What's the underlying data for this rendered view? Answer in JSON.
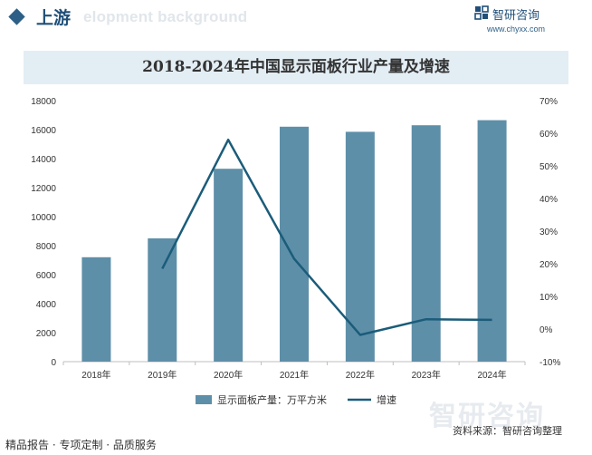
{
  "header": {
    "section_title": "上游",
    "background_watermark": "elopment background",
    "brand_name": "智研咨询",
    "brand_url": "www.chyxx.com"
  },
  "chart_title": "2018-2024年中国显示面板行业产量及增速",
  "chart_data": {
    "type": "bar",
    "title": "2018-2024年中国显示面板行业产量及增速",
    "categories": [
      "2018年",
      "2019年",
      "2020年",
      "2021年",
      "2022年",
      "2023年",
      "2024年"
    ],
    "series": [
      {
        "name": "显示面板产量：万平方米",
        "type": "bar",
        "axis": "left",
        "color": "#5e8fa8",
        "values": [
          7200,
          8500,
          13300,
          16200,
          15850,
          16300,
          16650
        ]
      },
      {
        "name": "增速",
        "type": "line",
        "axis": "right",
        "color": "#1b5c7a",
        "values": [
          null,
          18.5,
          58,
          21.5,
          -1.8,
          3,
          2.8
        ]
      }
    ],
    "y_left": {
      "min": 0,
      "max": 18000,
      "ticks": [
        "0",
        "2000",
        "4000",
        "6000",
        "8000",
        "10000",
        "12000",
        "14000",
        "16000",
        "18000"
      ]
    },
    "y_right": {
      "min": -10,
      "max": 70,
      "ticks": [
        "-10%",
        "0%",
        "10%",
        "20%",
        "30%",
        "40%",
        "50%",
        "60%",
        "70%"
      ]
    },
    "grid": false,
    "legend_position": "bottom"
  },
  "footer": {
    "left_text": "精品报告 · 专项定制 · 品质服务",
    "source_text": "资料来源：智研咨询整理",
    "logo_watermark": "智研咨询"
  }
}
